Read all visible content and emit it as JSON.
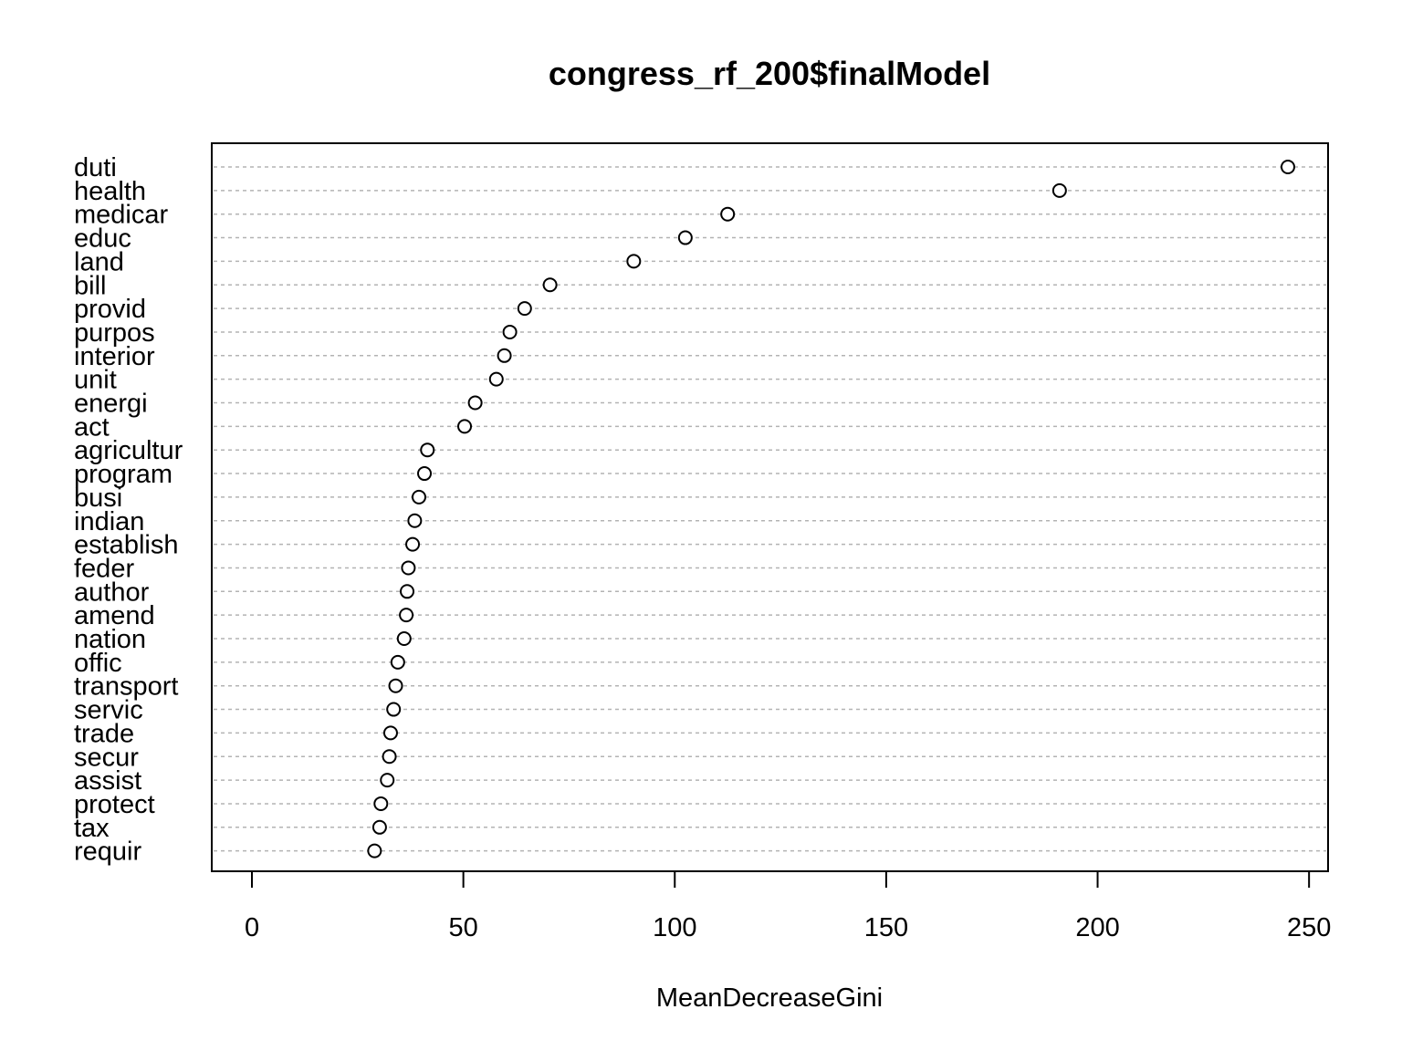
{
  "chart_data": {
    "type": "scatter",
    "title": "congress_rf_200$finalModel",
    "xlabel": "MeanDecreaseGini",
    "ylabel": "",
    "xlim": [
      -9.5,
      254.5
    ],
    "xticks": [
      0,
      50,
      100,
      150,
      200,
      250
    ],
    "grid": "dashed horizontal lines per row",
    "categories": [
      "duti",
      "health",
      "medicar",
      "educ",
      "land",
      "bill",
      "provid",
      "purpos",
      "interior",
      "unit",
      "energi",
      "act",
      "agricultur",
      "program",
      "busi",
      "indian",
      "establish",
      "feder",
      "author",
      "amend",
      "nation",
      "offic",
      "transport",
      "servic",
      "trade",
      "secur",
      "assist",
      "protect",
      "tax",
      "requir"
    ],
    "values": [
      245,
      191,
      112.5,
      102.5,
      90.3,
      70.5,
      64.5,
      61,
      59.7,
      57.8,
      52.8,
      50.3,
      41.5,
      40.8,
      39.5,
      38.5,
      38,
      37,
      36.7,
      36.5,
      36,
      34.5,
      34,
      33.5,
      32.8,
      32.5,
      32,
      30.5,
      30.2,
      29
    ]
  }
}
